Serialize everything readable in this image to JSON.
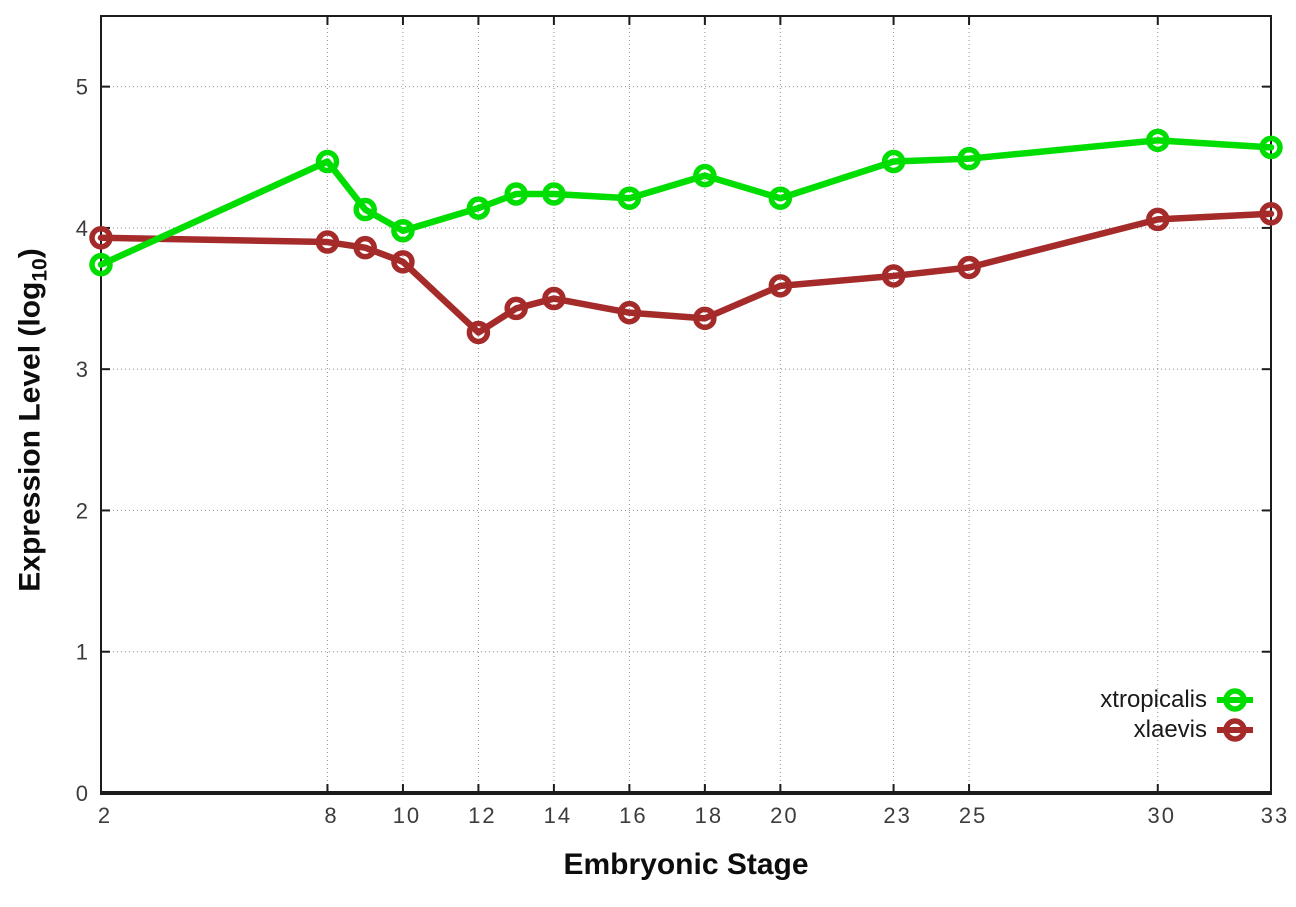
{
  "chart_data": {
    "type": "line",
    "title": "",
    "xlabel": "Embryonic Stage",
    "ylabel": "Expression Level (log10)",
    "ylabel_parts": {
      "prefix": "Expression Level (log",
      "subscript": "10",
      "suffix": ")"
    },
    "x": [
      2,
      8,
      9,
      10,
      12,
      13,
      14,
      16,
      18,
      20,
      23,
      25,
      30,
      33
    ],
    "x_tick_labels": [
      2,
      8,
      10,
      12,
      14,
      16,
      18,
      20,
      23,
      25,
      30,
      33
    ],
    "y_tick_labels": [
      0,
      1,
      2,
      3,
      4,
      5
    ],
    "xlim": [
      2,
      33
    ],
    "ylim": [
      0,
      5.5
    ],
    "grid": true,
    "legend_position": "inside-bottom-right",
    "series": [
      {
        "name": "xtropicalis",
        "color": "#00dd00",
        "marker": "open-circle",
        "values": [
          3.74,
          4.47,
          4.13,
          3.98,
          4.14,
          4.24,
          4.24,
          4.21,
          4.37,
          4.21,
          4.47,
          4.49,
          4.62,
          4.57
        ]
      },
      {
        "name": "xlaevis",
        "color": "#a52a2a",
        "marker": "open-circle",
        "values": [
          3.93,
          3.9,
          3.86,
          3.76,
          3.26,
          3.43,
          3.5,
          3.4,
          3.36,
          3.59,
          3.66,
          3.72,
          4.06,
          4.1
        ]
      }
    ]
  }
}
